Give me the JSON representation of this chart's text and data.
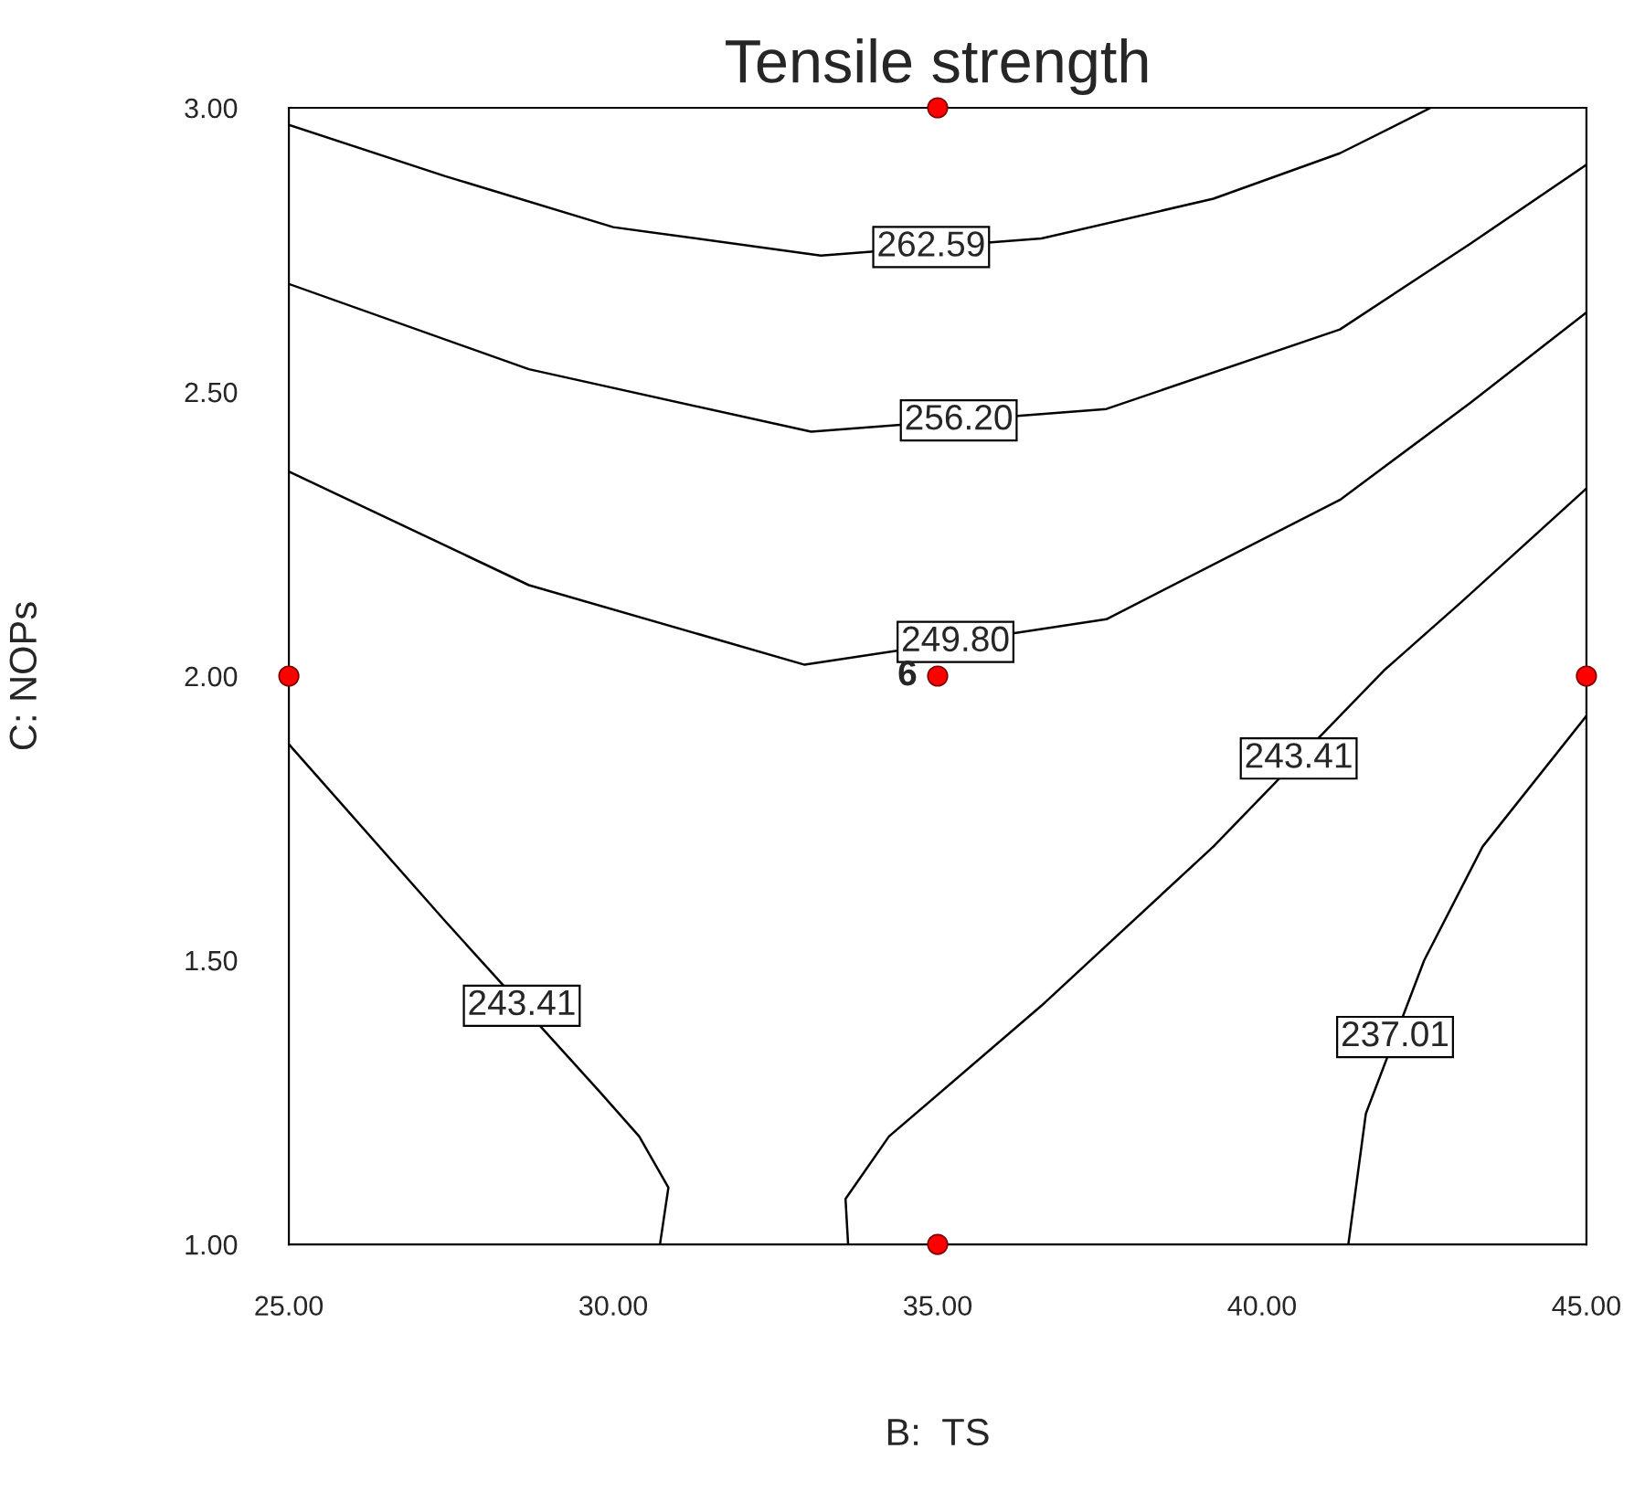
{
  "chart_data": {
    "type": "line",
    "title": "Tensile strength",
    "xlabel": "B:  TS",
    "ylabel": "C: NOPs",
    "xlim": [
      25,
      45
    ],
    "ylim": [
      1,
      3
    ],
    "xticks": [
      {
        "value": 25,
        "label": "25.00"
      },
      {
        "value": 30,
        "label": "30.00"
      },
      {
        "value": 35,
        "label": "35.00"
      },
      {
        "value": 40,
        "label": "40.00"
      },
      {
        "value": 45,
        "label": "45.00"
      }
    ],
    "yticks": [
      {
        "value": 1,
        "label": "1.00"
      },
      {
        "value": 1.5,
        "label": "1.50"
      },
      {
        "value": 2,
        "label": "2.00"
      },
      {
        "value": 2.5,
        "label": "2.50"
      },
      {
        "value": 3,
        "label": "3.00"
      }
    ],
    "grid": false,
    "series": [
      {
        "name": "262.59",
        "color": "#000000",
        "x": [
          25,
          27.4,
          30.0,
          33.2,
          36.6,
          39.25,
          41.2,
          42.6
        ],
        "values": [
          2.97,
          2.88,
          2.79,
          2.74,
          2.77,
          2.84,
          2.92,
          3.0
        ]
      },
      {
        "name": "256.20",
        "color": "#000000",
        "x": [
          25,
          28.7,
          33.05,
          37.6,
          41.2,
          43.2,
          45
        ],
        "values": [
          2.69,
          2.54,
          2.43,
          2.47,
          2.61,
          2.76,
          2.9
        ]
      },
      {
        "name": "249.80",
        "color": "#000000",
        "x": [
          25,
          28.7,
          32.95,
          37.6,
          41.2,
          43.2,
          45
        ],
        "values": [
          2.36,
          2.16,
          2.02,
          2.1,
          2.31,
          2.48,
          2.64
        ]
      },
      {
        "name": "243.41",
        "color": "#000000",
        "x": [
          25,
          27.4,
          29.78,
          30.4,
          30.85,
          30.72
        ],
        "values": [
          1.88,
          1.57,
          1.27,
          1.19,
          1.1,
          1.0
        ]
      },
      {
        "name": "243.41",
        "color": "#000000",
        "x": [
          33.62,
          33.58,
          34.25,
          36.6,
          39.25,
          41.88,
          43.07,
          45
        ],
        "values": [
          1.0,
          1.08,
          1.19,
          1.42,
          1.7,
          2.01,
          2.13,
          2.33
        ]
      },
      {
        "name": "237.01",
        "color": "#000000",
        "x": [
          41.33,
          41.6,
          42.5,
          43.4,
          45
        ],
        "values": [
          1.0,
          1.23,
          1.5,
          1.7,
          1.93
        ]
      },
      {
        "type": "scatter",
        "color": "#ff0000",
        "marker": "circle",
        "x": [
          25,
          35,
          35,
          35,
          45
        ],
        "values": [
          2,
          3,
          2,
          1,
          2
        ]
      }
    ],
    "annotations": [
      {
        "text": "6",
        "x": 35,
        "y": 2
      }
    ]
  }
}
